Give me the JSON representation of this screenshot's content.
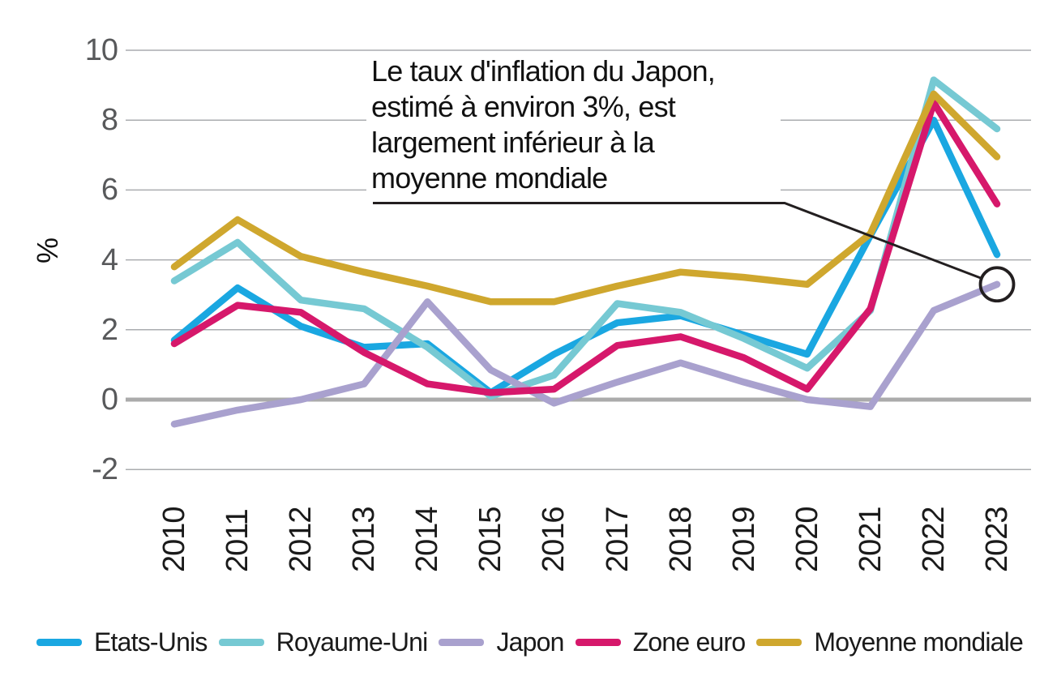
{
  "chart_data": {
    "type": "line",
    "title": "",
    "ylabel": "%",
    "xlabel": "",
    "x": [
      2010,
      2011,
      2012,
      2013,
      2014,
      2015,
      2016,
      2017,
      2018,
      2019,
      2020,
      2021,
      2022,
      2023
    ],
    "y_ticks": [
      10,
      8,
      6,
      4,
      2,
      0,
      -2
    ],
    "ylim": [
      -2,
      10
    ],
    "grid": "horizontal",
    "legend_position": "bottom",
    "series": [
      {
        "name": "Etats-Unis",
        "color": "#1aa7e1",
        "values": [
          1.7,
          3.2,
          2.1,
          1.5,
          1.6,
          0.2,
          1.3,
          2.2,
          2.4,
          1.85,
          1.3,
          4.7,
          8.0,
          4.15
        ]
      },
      {
        "name": "Royaume-Uni",
        "color": "#76c9d3",
        "values": [
          3.4,
          4.5,
          2.85,
          2.6,
          1.5,
          0.1,
          0.7,
          2.75,
          2.5,
          1.75,
          0.9,
          2.55,
          9.15,
          7.75
        ]
      },
      {
        "name": "Japon",
        "color": "#a9a1ce",
        "values": [
          -0.7,
          -0.3,
          0.0,
          0.45,
          2.8,
          0.85,
          -0.1,
          0.5,
          1.05,
          0.5,
          0.0,
          -0.2,
          2.55,
          3.3
        ]
      },
      {
        "name": "Zone euro",
        "color": "#d6186b",
        "values": [
          1.6,
          2.7,
          2.5,
          1.35,
          0.45,
          0.2,
          0.3,
          1.55,
          1.8,
          1.2,
          0.3,
          2.6,
          8.5,
          5.6
        ]
      },
      {
        "name": "Moyenne mondiale",
        "color": "#cfa72e",
        "values": [
          3.8,
          5.15,
          4.1,
          3.65,
          3.25,
          2.8,
          2.8,
          3.25,
          3.65,
          3.5,
          3.3,
          4.75,
          8.75,
          6.95
        ]
      }
    ],
    "annotation": {
      "lines": [
        "Le taux d'inflation du Japon,",
        "estimé à environ 3%, est",
        "largement inférieur à la",
        "moyenne mondiale"
      ],
      "target_series": "Japon",
      "target_year": 2023,
      "target_value": 3.3
    }
  },
  "colors": {
    "background": "#ffffff",
    "gridline": "#aaacaf",
    "zero_axis": "#ababab",
    "tick_text": "#58595b",
    "text": "#111111",
    "annotation_line": "#231f20"
  }
}
